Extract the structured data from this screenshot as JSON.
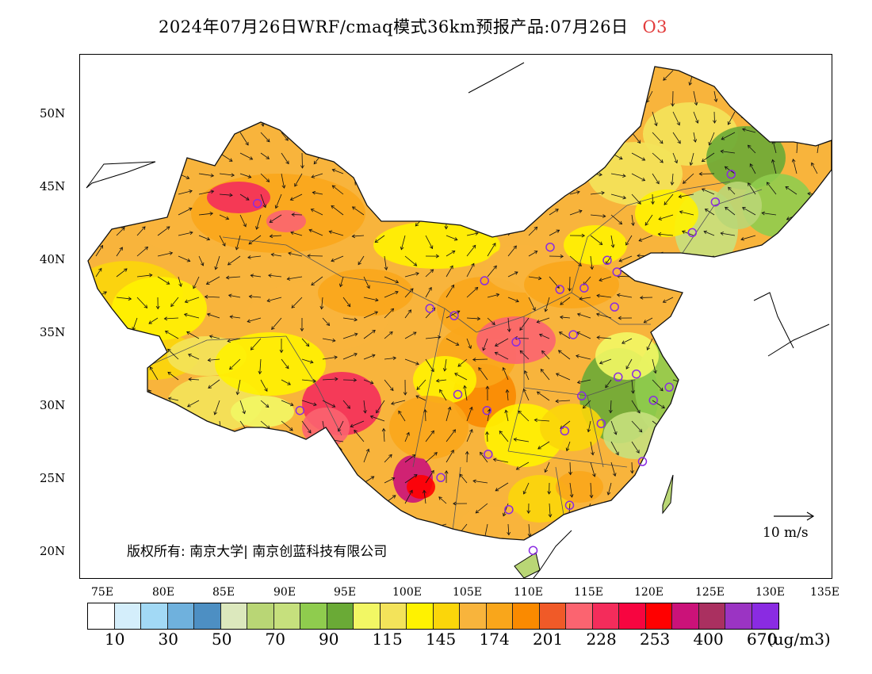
{
  "title": {
    "text": "2024年07月26日WRF/cmaq模式36km预报产品:07月26日",
    "species": "O3"
  },
  "lat_labels": [
    "50N",
    "45N",
    "40N",
    "35N",
    "30N",
    "25N",
    "20N"
  ],
  "lon_labels": [
    "75E",
    "80E",
    "85E",
    "90E",
    "95E",
    "100E",
    "105E",
    "110E",
    "115E",
    "120E",
    "125E",
    "130E",
    "135E"
  ],
  "wind_scale": {
    "label": "10 m/s"
  },
  "copyright": "版权所有: 南京大学| 南京创蓝科技有限公司",
  "colorbar": {
    "colors": [
      "#ffffff",
      "#d4eefb",
      "#a2d9f5",
      "#6fb1dd",
      "#4d8fc3",
      "#dce8bd",
      "#b9d675",
      "#c6e07d",
      "#8fcc4e",
      "#6aaa36",
      "#f2f764",
      "#f3e35a",
      "#fff200",
      "#fbd60a",
      "#f8b43c",
      "#f9a61b",
      "#fa8a00",
      "#f05a28",
      "#fb6470",
      "#f42c5b",
      "#f70540",
      "#ff0000",
      "#cb1279",
      "#aa3060",
      "#9b34c3",
      "#8a2be2"
    ],
    "labels": [
      "10",
      "30",
      "50",
      "70",
      "90",
      "115",
      "145",
      "174",
      "201",
      "228",
      "253",
      "400",
      "670"
    ],
    "unit": "(ug/m3)"
  },
  "map": {
    "lon_range": [
      73,
      135
    ],
    "lat_range": [
      18,
      54
    ],
    "stations": [
      [
        87.6,
        43.8
      ],
      [
        91.1,
        29.6
      ],
      [
        101.8,
        36.6
      ],
      [
        103.8,
        36.1
      ],
      [
        104.1,
        30.7
      ],
      [
        106.5,
        29.6
      ],
      [
        106.6,
        26.6
      ],
      [
        102.7,
        25.0
      ],
      [
        108.3,
        22.8
      ],
      [
        110.3,
        20.0
      ],
      [
        113.3,
        23.1
      ],
      [
        112.9,
        28.2
      ],
      [
        115.9,
        28.7
      ],
      [
        114.3,
        30.6
      ],
      [
        117.3,
        31.9
      ],
      [
        118.8,
        32.1
      ],
      [
        120.2,
        30.3
      ],
      [
        121.5,
        31.2
      ],
      [
        119.3,
        26.1
      ],
      [
        117.0,
        36.7
      ],
      [
        113.6,
        34.8
      ],
      [
        108.9,
        34.3
      ],
      [
        106.3,
        38.5
      ],
      [
        111.7,
        40.8
      ],
      [
        116.4,
        39.9
      ],
      [
        117.2,
        39.1
      ],
      [
        114.5,
        38.0
      ],
      [
        112.5,
        37.9
      ],
      [
        123.4,
        41.8
      ],
      [
        125.3,
        43.9
      ],
      [
        126.6,
        45.8
      ]
    ]
  }
}
